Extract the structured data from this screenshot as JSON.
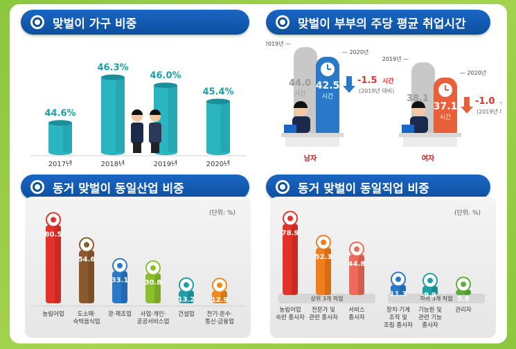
{
  "panels": {
    "p1": {
      "title": "맞벌이 가구 비중"
    },
    "p2": {
      "title": "맞벌이 부부의 주당 평균 취업시간"
    },
    "p3": {
      "title": "동거 맞벌이 동일산업 비중",
      "unit": "(단위: %)"
    },
    "p4": {
      "title": "동거 맞벌이 동일직업 비중",
      "unit": "(단위: %)"
    }
  },
  "colors": {
    "title_bg": "#0d4f9e",
    "teal": "#2bb5c0",
    "teal_dark": "#1a8f99",
    "value_text": "#1aa0aa",
    "male_blue": "#2a78c8",
    "female_orange": "#e8603a",
    "gray_bar": "#c8c8c8",
    "red_arrow": "#e2322a",
    "label_red": "#c0181e"
  },
  "chart_data": [
    {
      "type": "bar",
      "title": "맞벌이 가구 비중",
      "categories": [
        "2017년",
        "2018년",
        "2019년",
        "2020년"
      ],
      "values": [
        44.6,
        46.3,
        46.0,
        45.4
      ],
      "value_labels": [
        "44.6%",
        "46.3%",
        "46.0%",
        "45.4%"
      ],
      "ylim": [
        43.5,
        46.6
      ]
    },
    {
      "type": "bar",
      "title": "맞벌이 부부의 주당 평균 취업시간",
      "groups": [
        {
          "name": "남자",
          "prev_label": "2019년",
          "curr_label": "2020년",
          "prev_value": 44.0,
          "curr_value": 42.5,
          "prev_text": "44.0",
          "curr_text": "42.5",
          "unit": "시간",
          "change_text": "-1.5",
          "change_unit": "시간",
          "change_note": "(2019년 대비)"
        },
        {
          "name": "여자",
          "prev_label": "2019년",
          "curr_label": "2020년",
          "prev_value": 38.1,
          "curr_value": 37.1,
          "prev_text": "38.1",
          "curr_text": "37.1",
          "unit": "시간",
          "change_text": "-1.0",
          "change_unit": "시간",
          "change_note": "(2019년 대비)"
        }
      ]
    },
    {
      "type": "bar",
      "title": "동거 맞벌이 동일산업 비중",
      "unit": "(단위: %)",
      "categories": [
        [
          "농림어업"
        ],
        [
          "도소매·",
          "숙박음식업"
        ],
        [
          "광·제조업"
        ],
        [
          "사업·개인·",
          "공공서비스업"
        ],
        [
          "건설업"
        ],
        [
          "전기·운수·",
          "통신·금융업"
        ]
      ],
      "values": [
        80.5,
        54.6,
        33.1,
        30.8,
        13.2,
        12.9
      ],
      "value_labels": [
        "80.5",
        "54.6",
        "33.1",
        "30.8",
        "13.2",
        "12.9"
      ],
      "colors": [
        "#e2322a",
        "#8a5a2e",
        "#2a78c8",
        "#8cbf2e",
        "#1e9fa8",
        "#f08a1c"
      ],
      "icons": [
        "wheat-icon",
        "cart-icon",
        "factory-gear-icon",
        "office-icon",
        "excavator-icon",
        "truck-icon"
      ],
      "ylim": [
        0,
        100
      ]
    },
    {
      "type": "bar",
      "title": "동거 맞벌이 동일직업 비중",
      "unit": "(단위: %)",
      "categories": [
        [
          "농림어업",
          "숙련 종사자"
        ],
        [
          "전문가 및",
          "관련 종사자"
        ],
        [
          "서비스",
          "종사자"
        ],
        [
          "장치·기계",
          "조작 및",
          "조립 종사자"
        ],
        [
          "기능원 및",
          "관련 기능",
          "종사자"
        ],
        [
          "관리자"
        ]
      ],
      "values": [
        78.9,
        52.3,
        44.8,
        11.3,
        9.9,
        5.8
      ],
      "value_labels": [
        "78.9",
        "52.3",
        "44.8",
        "11.3",
        "9.9",
        "5.8"
      ],
      "colors": [
        "#e2322a",
        "#f07e1e",
        "#ec6b5a",
        "#2a78c8",
        "#1e9fa8",
        "#5fae3a"
      ],
      "icons": [
        "farmer-icon",
        "doctor-icon",
        "waiter-icon",
        "machinist-icon",
        "worker-icon",
        "manager-icon"
      ],
      "group_labels": [
        "상위 3개 직업",
        "하위 3개 직업"
      ],
      "ylim": [
        0,
        100
      ]
    }
  ]
}
